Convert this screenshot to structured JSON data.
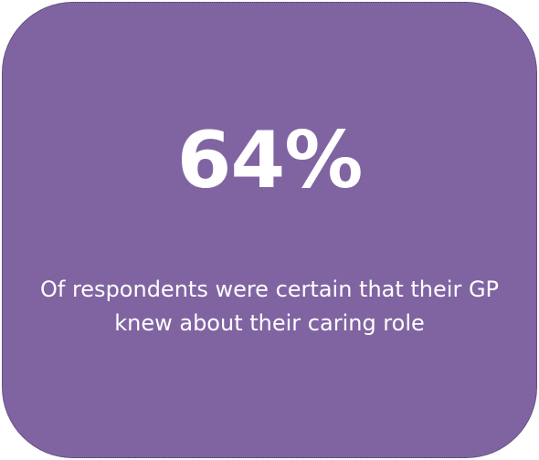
{
  "card": {
    "value": "64%",
    "caption": "Of respondents were certain that their GP knew about their caring role",
    "colors": {
      "background": "#8064a2",
      "text": "#ffffff"
    }
  }
}
